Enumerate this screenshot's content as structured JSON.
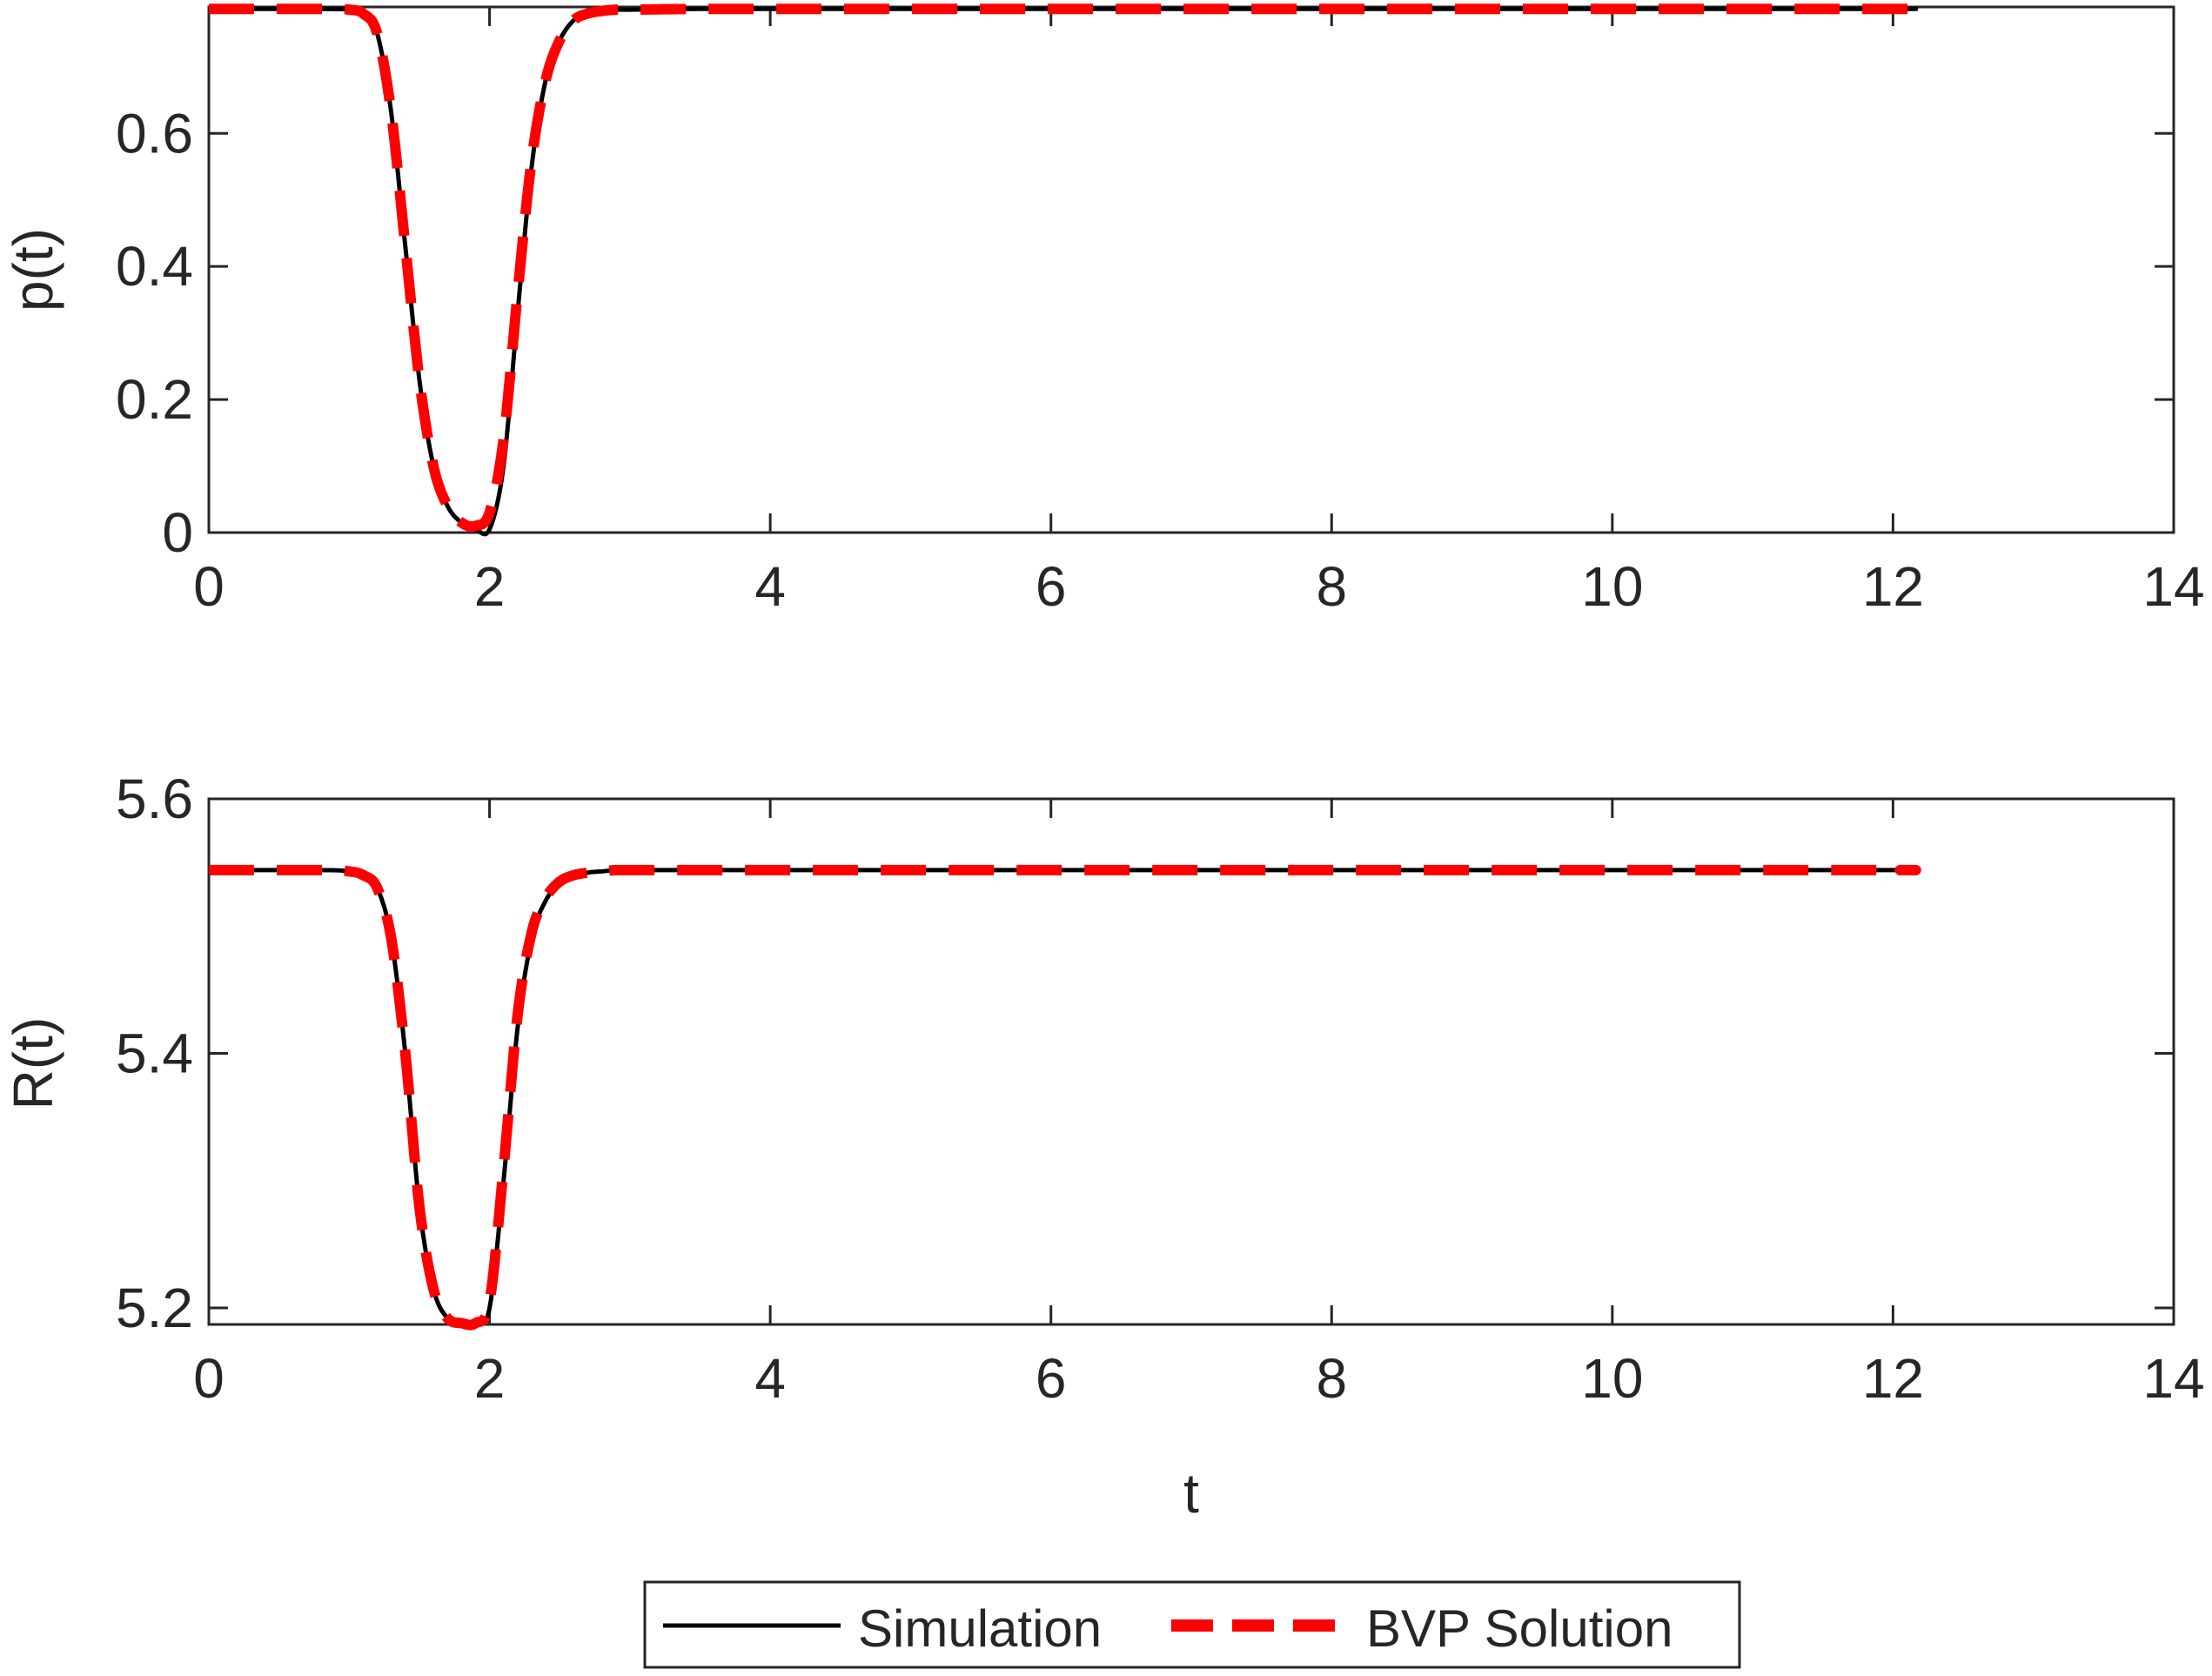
{
  "chart_data": [
    {
      "type": "line",
      "ylabel": "p(t)",
      "xlabel": "",
      "xlim": [
        0,
        14
      ],
      "ylim": [
        0,
        0.79
      ],
      "xticks": [
        0,
        2,
        4,
        6,
        8,
        10,
        12,
        14
      ],
      "yticks": [
        0,
        0.2,
        0.4,
        0.6
      ],
      "ytick_labels": [
        "0",
        "0.2",
        "0.4",
        "0.6"
      ],
      "xtick_labels": [
        "0",
        "2",
        "4",
        "6",
        "8",
        "10",
        "12",
        "14"
      ],
      "grid": false,
      "series": [
        {
          "name": "Simulation",
          "color": "#000000",
          "style": "solid",
          "x": [
            0,
            0.8,
            1.0,
            1.1,
            1.2,
            1.3,
            1.4,
            1.5,
            1.6,
            1.7,
            1.8,
            1.9,
            2.0,
            2.1,
            2.2,
            2.3,
            2.4,
            2.5,
            2.6,
            2.7,
            2.8,
            2.9,
            3.0,
            3.5,
            4,
            6,
            8,
            10,
            12,
            12.05
          ],
          "y": [
            0.787,
            0.787,
            0.786,
            0.78,
            0.75,
            0.63,
            0.43,
            0.23,
            0.1,
            0.04,
            0.015,
            0.005,
            0.005,
            0.1,
            0.33,
            0.55,
            0.68,
            0.74,
            0.77,
            0.78,
            0.784,
            0.786,
            0.786,
            0.787,
            0.787,
            0.787,
            0.787,
            0.787,
            0.787,
            0.787
          ]
        },
        {
          "name": "BVP Solution",
          "color": "#ff0000",
          "style": "dashed",
          "x": [
            0,
            0.8,
            1.0,
            1.1,
            1.2,
            1.3,
            1.4,
            1.5,
            1.6,
            1.7,
            1.8,
            1.9,
            2.0,
            2.1,
            2.2,
            2.3,
            2.4,
            2.5,
            2.6,
            2.7,
            2.8,
            2.9,
            3.0,
            3.5,
            4,
            6,
            8,
            10,
            12,
            12.05
          ],
          "y": [
            0.787,
            0.787,
            0.786,
            0.78,
            0.75,
            0.63,
            0.43,
            0.23,
            0.1,
            0.04,
            0.015,
            0.01,
            0.03,
            0.14,
            0.36,
            0.56,
            0.68,
            0.74,
            0.77,
            0.78,
            0.784,
            0.786,
            0.786,
            0.787,
            0.787,
            0.787,
            0.787,
            0.787,
            0.787,
            0.787
          ]
        }
      ]
    },
    {
      "type": "line",
      "ylabel": "R(t)",
      "xlabel": "t",
      "xlim": [
        0,
        14
      ],
      "ylim": [
        5.187,
        5.6
      ],
      "xticks": [
        0,
        2,
        4,
        6,
        8,
        10,
        12,
        14
      ],
      "yticks": [
        5.2,
        5.4,
        5.6
      ],
      "ytick_labels": [
        "5.2",
        "5.4",
        "5.6"
      ],
      "xtick_labels": [
        "0",
        "2",
        "4",
        "6",
        "8",
        "10",
        "12",
        "14"
      ],
      "grid": false,
      "series": [
        {
          "name": "Simulation",
          "color": "#000000",
          "style": "solid",
          "x": [
            0,
            0.8,
            1.0,
            1.1,
            1.2,
            1.3,
            1.4,
            1.5,
            1.6,
            1.7,
            1.8,
            1.9,
            2.0,
            2.1,
            2.2,
            2.3,
            2.4,
            2.5,
            2.6,
            2.7,
            2.8,
            2.9,
            3.0,
            3.5,
            4,
            6,
            8,
            10,
            12,
            12.05
          ],
          "y": [
            5.544,
            5.544,
            5.543,
            5.54,
            5.53,
            5.49,
            5.4,
            5.28,
            5.215,
            5.192,
            5.188,
            5.188,
            5.2,
            5.3,
            5.42,
            5.49,
            5.52,
            5.533,
            5.539,
            5.542,
            5.543,
            5.544,
            5.544,
            5.544,
            5.544,
            5.544,
            5.544,
            5.544,
            5.544,
            5.544
          ]
        },
        {
          "name": "BVP Solution",
          "color": "#ff0000",
          "style": "dashed",
          "x": [
            0,
            0.8,
            1.0,
            1.1,
            1.2,
            1.3,
            1.4,
            1.5,
            1.6,
            1.7,
            1.8,
            1.9,
            2.0,
            2.1,
            2.2,
            2.3,
            2.4,
            2.5,
            2.6,
            2.7,
            2.8,
            2.9,
            3.0,
            3.5,
            4,
            6,
            8,
            10,
            12,
            12.05
          ],
          "y": [
            5.544,
            5.544,
            5.543,
            5.54,
            5.53,
            5.49,
            5.4,
            5.28,
            5.215,
            5.192,
            5.188,
            5.188,
            5.205,
            5.31,
            5.43,
            5.495,
            5.522,
            5.535,
            5.54,
            5.542,
            5.543,
            5.544,
            5.544,
            5.544,
            5.544,
            5.544,
            5.544,
            5.544,
            5.544,
            5.544
          ]
        }
      ]
    }
  ],
  "legend": {
    "placement": "bottom-center",
    "entries": [
      {
        "label": "Simulation",
        "color": "#000000",
        "style": "solid"
      },
      {
        "label": "BVP Solution",
        "color": "#ff0000",
        "style": "dashed"
      }
    ]
  }
}
